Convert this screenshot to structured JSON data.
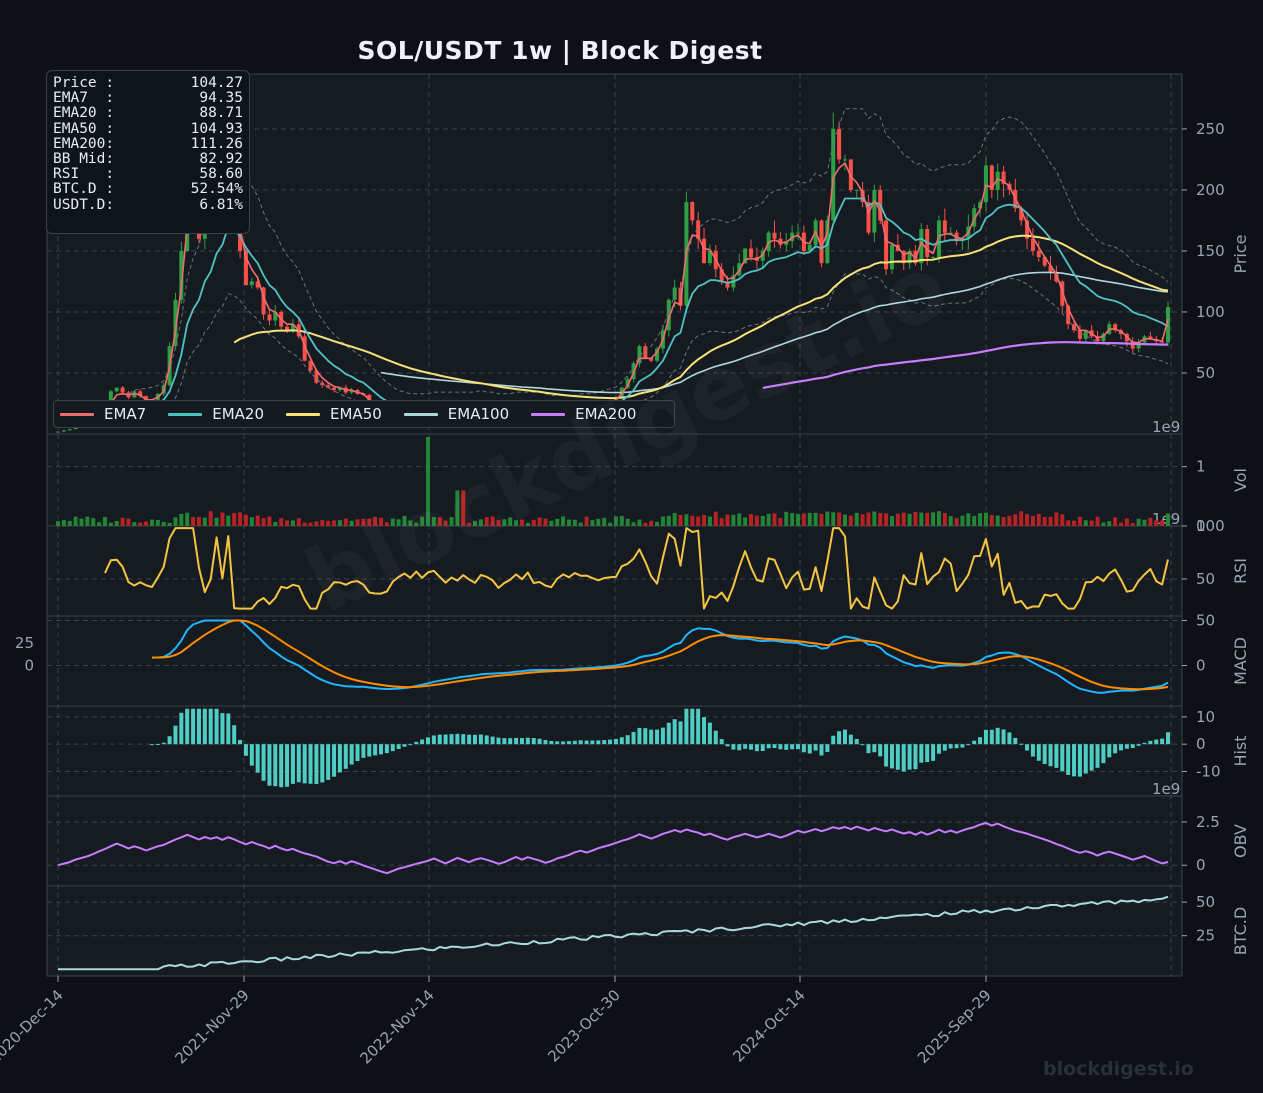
{
  "title": "SOL/USDT  1w  |  Block Digest",
  "watermark": "blockdigest.io",
  "footer": "blockdigest.io",
  "colors": {
    "background": "#0d1117",
    "panel": "#161b22",
    "grid": "#3a414b",
    "up": "#2ea043",
    "down": "#f85149",
    "ema7": "#f06d6d",
    "ema20": "#4fc3c3",
    "ema50": "#f7e27a",
    "ema100": "#aed8dc",
    "ema200": "#c77dff",
    "rsi": "#f5c542",
    "macd": "#1fb6ff",
    "signal": "#ff8c00",
    "hist": "#4ecdc4",
    "obv": "#c77dff",
    "btcd": "#a8dadc"
  },
  "info_box": [
    {
      "label": "Price :",
      "value": "104.27"
    },
    {
      "label": "EMA7  :",
      "value": "94.35"
    },
    {
      "label": "EMA20 :",
      "value": "88.71"
    },
    {
      "label": "EMA50 :",
      "value": "104.93"
    },
    {
      "label": "EMA200:",
      "value": "111.26"
    },
    {
      "label": "BB Mid:",
      "value": "82.92"
    },
    {
      "label": "RSI   :",
      "value": "58.60"
    },
    {
      "label": "BTC.D :",
      "value": "52.54%"
    },
    {
      "label": "USDT.D:",
      "value": "6.81%"
    }
  ],
  "legend": [
    {
      "name": "EMA7",
      "color": "#f06d6d"
    },
    {
      "name": "EMA20",
      "color": "#4fc3c3"
    },
    {
      "name": "EMA50",
      "color": "#f7e27a"
    },
    {
      "name": "EMA100",
      "color": "#aed8dc"
    },
    {
      "name": "EMA200",
      "color": "#c77dff"
    }
  ],
  "chart_data": {
    "type": "line",
    "x_tick_labels": [
      "2020-Dec-14",
      "2021-Nov-29",
      "2022-Nov-14",
      "2023-Oct-30",
      "2024-Oct-14",
      "2025-Sep-29"
    ],
    "panels": [
      {
        "id": "price",
        "ylabel": "Price",
        "yticks": [
          50,
          100,
          150,
          200,
          250
        ],
        "ylim": [
          0,
          295
        ],
        "offset_label": "1e9",
        "series": [
          {
            "name": "Close",
            "values": [
              2,
              3,
              4,
              6,
              8,
              10,
              13,
              16,
              22,
              35,
              38,
              34,
              30,
              35,
              31,
              24,
              28,
              33,
              40,
              72,
              110,
              150,
              205,
              180,
              160,
              190,
              175,
              210,
              190,
              225,
              178,
              150,
              122,
              125,
              120,
              98,
              93,
              100,
              88,
              85,
              90,
              80,
              60,
              52,
              42,
              40,
              38,
              36,
              38,
              34,
              36,
              33,
              32,
              22,
              18,
              14,
              12,
              13,
              13,
              14,
              15,
              18,
              20,
              22,
              24,
              22,
              20,
              22,
              23,
              21,
              20,
              22,
              25,
              20,
              18,
              17,
              18,
              20,
              22,
              21,
              24,
              22,
              20,
              16,
              16,
              17,
              18,
              20,
              21,
              23,
              20,
              22,
              23,
              25,
              27,
              30,
              38,
              45,
              58,
              72,
              62,
              60,
              70,
              85,
              110,
              120,
              105,
              190,
              175,
              160,
              140,
              150,
              135,
              125,
              120,
              130,
              140,
              152,
              145,
              142,
              150,
              165,
              160,
              155,
              158,
              165,
              165,
              150,
              155,
              175,
              140,
              175,
              250,
              225,
              225,
              200,
              200,
              190,
              165,
              200,
              175,
              135,
              155,
              150,
              140,
              150,
              140,
              168,
              145,
              145,
              175,
              165,
              165,
              158,
              160,
              170,
              185,
              190,
              220,
              200,
              215,
              205,
              200,
              185,
              175,
              160,
              150,
              145,
              138,
              132,
              125,
              105,
              90,
              85,
              78,
              85,
              80,
              76,
              82,
              90,
              85,
              82,
              76,
              70,
              75,
              80,
              78,
              76,
              75,
              104
            ]
          },
          {
            "name": "EMA7",
            "values": [
              null,
              null,
              null,
              null,
              null,
              6,
              9,
              12,
              16,
              25,
              32,
              33,
              32,
              33,
              32,
              28,
              28,
              30,
              35,
              55,
              85,
              120,
              170,
              175,
              168,
              178,
              176,
              195,
              192,
              210,
              190,
              168,
              145,
              135,
              128,
              112,
              102,
              100,
              94,
              90,
              90,
              85,
              72,
              62,
              52,
              46,
              42,
              39,
              38,
              36,
              36,
              34,
              33,
              28,
              23,
              18,
              15,
              14,
              13,
              14,
              14,
              16,
              18,
              20,
              22,
              22,
              21,
              21,
              22,
              21,
              21,
              21,
              23,
              21,
              20,
              19,
              18,
              19,
              21,
              21,
              22,
              22,
              21,
              19,
              17,
              17,
              17,
              19,
              20,
              21,
              21,
              21,
              22,
              24,
              25,
              28,
              33,
              40,
              50,
              62,
              62,
              62,
              67,
              77,
              95,
              108,
              106,
              150,
              163,
              162,
              152,
              151,
              143,
              134,
              127,
              128,
              134,
              143,
              144,
              143,
              147,
              157,
              159,
              157,
              157,
              161,
              163,
              157,
              156,
              166,
              153,
              165,
              210,
              218,
              222,
              211,
              206,
              198,
              181,
              191,
              183,
              158,
              156,
              153,
              147,
              149,
              144,
              157,
              151,
              148,
              162,
              164,
              164,
              161,
              160,
              165,
              176,
              184,
              204,
              202,
              209,
              207,
              203,
              193,
              184,
              172,
              161,
              153,
              145,
              138,
              131,
              117,
              103,
              93,
              85,
              85,
              82,
              79,
              80,
              86,
              86,
              84,
              80,
              75,
              75,
              78,
              78,
              77,
              76,
              94
            ]
          },
          {
            "name": "EMA20",
            "values": [
              null,
              null,
              null,
              null,
              null,
              null,
              null,
              null,
              null,
              null,
              null,
              null,
              20,
              22,
              23,
              23,
              24,
              25,
              28,
              35,
              48,
              65,
              90,
              102,
              110,
              125,
              133,
              148,
              155,
              170,
              168,
              162,
              153,
              146,
              140,
              130,
              122,
              118,
              110,
              104,
              100,
              95,
              86,
              78,
              70,
              65,
              60,
              56,
              53,
              49,
              47,
              44,
              42,
              38,
              34,
              30,
              27,
              24,
              22,
              21,
              20,
              20,
              20,
              20,
              21,
              21,
              21,
              21,
              21,
              21,
              21,
              21,
              22,
              21,
              21,
              20,
              20,
              20,
              21,
              21,
              21,
              21,
              21,
              20,
              19,
              19,
              19,
              19,
              19,
              20,
              20,
              20,
              21,
              22,
              23,
              24,
              27,
              31,
              36,
              43,
              46,
              49,
              54,
              60,
              70,
              80,
              83,
              102,
              115,
              121,
              123,
              126,
              126,
              125,
              124,
              125,
              127,
              131,
              133,
              134,
              136,
              141,
              143,
              144,
              145,
              147,
              149,
              148,
              149,
              154,
              152,
              155,
              172,
              183,
              193,
              193,
              193,
              193,
              187,
              190,
              188,
              177,
              174,
              170,
              165,
              163,
              159,
              160,
              157,
              155,
              157,
              158,
              159,
              159,
              159,
              160,
              164,
              167,
              177,
              180,
              185,
              187,
              188,
              187,
              185,
              181,
              176,
              171,
              166,
              160,
              155,
              147,
              139,
              131,
              124,
              121,
              117,
              113,
              111,
              110,
              109,
              107,
              104,
              100,
              98,
              97,
              95,
              93,
              91,
              88
            ]
          },
          {
            "name": "EMA50",
            "values": [
              null,
              null,
              null,
              null,
              null,
              null,
              null,
              null,
              null,
              null,
              null,
              null,
              null,
              null,
              null,
              null,
              null,
              null,
              null,
              null,
              null,
              null,
              null,
              null,
              null,
              null,
              null,
              null,
              null,
              null,
              null,
              null,
              null,
              null,
              null,
              null,
              null,
              null,
              null,
              null,
              null,
              null,
              null,
              null,
              null,
              null,
              null,
              null,
              null,
              null,
              null,
              null,
              null,
              null,
              null,
              null,
              null,
              null,
              null,
              null,
              null,
              null,
              null,
              null,
              null,
              null,
              null,
              null,
              null,
              null,
              null,
              null,
              null,
              null,
              null,
              null,
              null,
              null,
              null,
              null,
              null,
              null,
              null,
              null,
              null,
              null,
              null,
              null,
              null,
              null,
              null,
              null,
              null,
              null,
              null,
              null,
              null,
              null,
              null,
              null,
              null,
              null,
              null,
              null,
              null,
              null,
              null,
              null,
              null,
              null,
              null,
              null,
              null,
              null,
              null,
              null,
              null,
              null,
              null,
              null,
              null,
              null,
              null,
              null,
              null,
              null,
              null,
              null,
              null,
              null,
              null,
              null,
              null,
              null,
              null,
              null,
              null,
              null,
              null,
              null,
              null,
              null,
              null,
              null,
              null,
              null,
              null,
              null,
              null,
              null,
              null,
              null,
              null,
              null,
              null,
              null,
              null,
              null,
              null,
              null,
              null,
              null,
              null,
              null,
              null,
              null,
              null,
              null,
              null,
              null,
              null,
              null,
              null,
              null,
              null,
              null,
              null,
              null,
              null,
              null,
              null,
              null,
              null,
              null,
              null,
              null,
              null,
              null,
              null,
              null
            ]
          }
        ]
      },
      {
        "id": "vol",
        "ylabel": "Vol",
        "yticks": [
          0,
          1
        ],
        "ylim": [
          0,
          1.55
        ],
        "offset_label": "1e9"
      },
      {
        "id": "rsi",
        "ylabel": "RSI",
        "yticks": [
          50,
          100
        ],
        "ylim": [
          15,
          100
        ]
      },
      {
        "id": "macd",
        "ylabel": "MACD",
        "yticks": [
          0,
          50
        ],
        "left_yticks": [
          0,
          25
        ],
        "ylim": [
          -45,
          55
        ]
      },
      {
        "id": "hist",
        "ylabel": "Hist",
        "yticks": [
          -10,
          0,
          10
        ],
        "ylim": [
          -19,
          14
        ],
        "offset_label": "1e9"
      },
      {
        "id": "obv",
        "ylabel": "OBV",
        "yticks": [
          0.0,
          2.5
        ],
        "ylim": [
          -1.2,
          4.0
        ]
      },
      {
        "id": "btcd",
        "ylabel": "BTC.D",
        "yticks": [
          25,
          50
        ],
        "ylim": [
          -5,
          62
        ]
      }
    ]
  }
}
